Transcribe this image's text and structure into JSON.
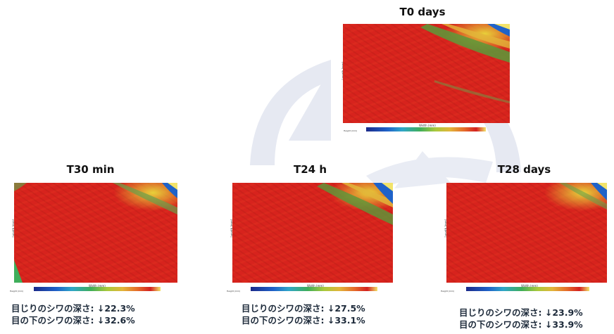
{
  "panels": {
    "t0": {
      "title": "T0 days",
      "ylabel": "Length (mm)",
      "xlabel": "Width (mm)",
      "legend_label": "Height (mm)"
    },
    "t30min": {
      "title": "T30 min",
      "ylabel": "Length (mm)",
      "xlabel": "Width (mm)",
      "legend_label": "Height (mm)",
      "caption_line1": "目じりのシワの深さ: ↓22.3%",
      "caption_line2": "目の下のシワの深さ: ↓32.6%"
    },
    "t24h": {
      "title": "T24 h",
      "ylabel": "Length (mm)",
      "xlabel": "Width (mm)",
      "legend_label": "Height (mm)",
      "caption_line1": "目じりのシワの深さ: ↓27.5%",
      "caption_line2": "目の下のシワの深さ: ↓33.1%"
    },
    "t28days": {
      "title": "T28 days",
      "ylabel": "Length (mm)",
      "xlabel": "Width (mm)",
      "legend_label": "Height (mm)",
      "caption_line1": "目じりのシワの深さ: ↓23.9%",
      "caption_line2": "目の下のシワの深さ: ↓33.9%"
    }
  },
  "colors": {
    "surface_red": "#d7231d",
    "swoosh": "#e4e8f2",
    "caption_text": "#1d2a3a"
  }
}
